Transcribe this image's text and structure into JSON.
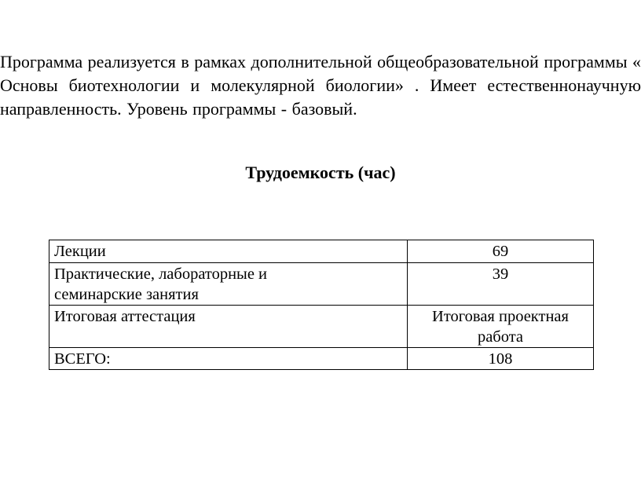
{
  "paragraph": "Программа реализуется в рамках дополнительной общеобразовательной программы « Основы  биотехнологии  и молекулярной биологии» . Имеет естественнонаучную направленность. Уровень программы - базовый.",
  "table_title": "Трудоемкость (час)",
  "table": {
    "rows": [
      {
        "label": "Лекции",
        "value": "69"
      },
      {
        "label": "Практические, лабораторные и семинарские занятия",
        "value": "39"
      },
      {
        "label": "Итоговая аттестация",
        "value": "Итоговая проектная работа"
      },
      {
        "label": "ВСЕГО:",
        "value": "108"
      }
    ]
  }
}
